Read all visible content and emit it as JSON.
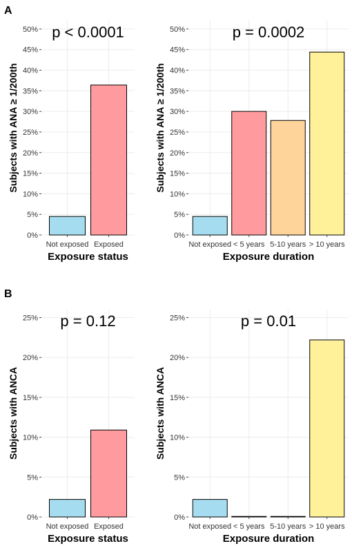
{
  "panel_labels": {
    "a": "A",
    "b": "B"
  },
  "colors": {
    "not_exposed": "#a6dcef",
    "exposed": "#ff9a9e",
    "lt5": "#ff9a9e",
    "mid": "#ffd49a",
    "gt10": "#fff09a",
    "grid": "#ececec",
    "stroke": "#000000"
  },
  "chart_data": [
    {
      "panel": "A",
      "type": "bar",
      "annotation": "p < 0.0001",
      "xlabel": "Exposure status",
      "ylabel": "Subjects with ANA ≥ 1/200th",
      "categories": [
        "Not exposed",
        "Exposed"
      ],
      "values": [
        4.5,
        36.4
      ],
      "ylim": [
        0,
        52
      ],
      "yticks": [
        0,
        5,
        10,
        15,
        20,
        25,
        30,
        35,
        40,
        45,
        50
      ],
      "ytick_labels": [
        "0%",
        "5%",
        "10%",
        "15%",
        "20%",
        "25%",
        "30%",
        "35%",
        "40%",
        "45%",
        "50%"
      ],
      "bar_colors": [
        "#a6dcef",
        "#ff9a9e"
      ],
      "grid": true,
      "legend": "none"
    },
    {
      "panel": "A",
      "type": "bar",
      "annotation": "p = 0.0002",
      "xlabel": "Exposure duration",
      "ylabel": "Subjects with ANA ≥ 1/200th",
      "categories": [
        "Not exposed",
        "< 5 years",
        "5-10 years",
        "> 10 years"
      ],
      "values": [
        4.5,
        30.0,
        27.8,
        44.4
      ],
      "ylim": [
        0,
        52
      ],
      "yticks": [
        0,
        5,
        10,
        15,
        20,
        25,
        30,
        35,
        40,
        45,
        50
      ],
      "ytick_labels": [
        "0%",
        "5%",
        "10%",
        "15%",
        "20%",
        "25%",
        "30%",
        "35%",
        "40%",
        "45%",
        "50%"
      ],
      "bar_colors": [
        "#a6dcef",
        "#ff9a9e",
        "#ffd49a",
        "#fff09a"
      ],
      "grid": true,
      "legend": "none"
    },
    {
      "panel": "B",
      "type": "bar",
      "annotation": "p = 0.12",
      "xlabel": "Exposure status",
      "ylabel": "Subjects with ANCA",
      "categories": [
        "Not exposed",
        "Exposed"
      ],
      "values": [
        2.2,
        10.9
      ],
      "ylim": [
        0,
        26
      ],
      "yticks": [
        0,
        5,
        10,
        15,
        20,
        25
      ],
      "ytick_labels": [
        "0%",
        "5%",
        "10%",
        "15%",
        "20%",
        "25%"
      ],
      "bar_colors": [
        "#a6dcef",
        "#ff9a9e"
      ],
      "grid": true,
      "legend": "none"
    },
    {
      "panel": "B",
      "type": "bar",
      "annotation": "p = 0.01",
      "xlabel": "Exposure duration",
      "ylabel": "Subjects with ANCA",
      "categories": [
        "Not exposed",
        "< 5 years",
        "5-10 years",
        "> 10 years"
      ],
      "values": [
        2.2,
        0,
        0,
        22.2
      ],
      "ylim": [
        0,
        26
      ],
      "yticks": [
        0,
        5,
        10,
        15,
        20,
        25
      ],
      "ytick_labels": [
        "0%",
        "5%",
        "10%",
        "15%",
        "20%",
        "25%"
      ],
      "bar_colors": [
        "#a6dcef",
        "#ff9a9e",
        "#ffd49a",
        "#fff09a"
      ],
      "grid": true,
      "legend": "none"
    }
  ]
}
